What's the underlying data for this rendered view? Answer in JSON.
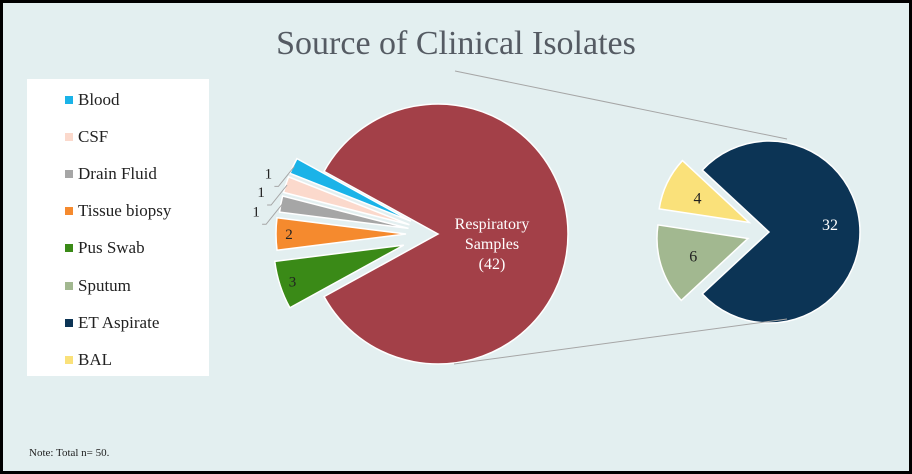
{
  "chart_data": {
    "type": "pie",
    "subtype": "pie-of-pie",
    "title": "Source of Clinical Isolates",
    "note": "Note: Total n= 50.",
    "legend_position": "left",
    "main_pie": {
      "slices": [
        {
          "name": "Respiratory Samples",
          "label": "Respiratory",
          "label2": "Samples",
          "label3": "(42)",
          "value": 42,
          "color": "#a34048"
        },
        {
          "name": "Pus Swab",
          "label": "3",
          "value": 3,
          "color": "#3a8a17"
        },
        {
          "name": "Tissue biopsy",
          "label": "2",
          "value": 2,
          "color": "#f58a2e"
        },
        {
          "name": "Drain Fluid",
          "label": "1",
          "value": 1,
          "color": "#a6a6a6"
        },
        {
          "name": "CSF",
          "label": "1",
          "value": 1,
          "color": "#fbd9cc"
        },
        {
          "name": "Blood",
          "label": "1",
          "value": 1,
          "color": "#1ab3e8"
        }
      ]
    },
    "secondary_pie": {
      "of": "Respiratory Samples",
      "slices": [
        {
          "name": "ET Aspirate",
          "label": "32",
          "value": 32,
          "color": "#0c3455"
        },
        {
          "name": "Sputum",
          "label": "6",
          "value": 6,
          "color": "#a2b890"
        },
        {
          "name": "BAL",
          "label": "4",
          "value": 4,
          "color": "#fae17a"
        }
      ]
    },
    "legend": [
      {
        "name": "Blood",
        "color": "#1ab3e8"
      },
      {
        "name": "CSF",
        "color": "#fbd9cc"
      },
      {
        "name": "Drain Fluid",
        "color": "#a6a6a6"
      },
      {
        "name": "Tissue biopsy",
        "color": "#f58a2e"
      },
      {
        "name": "Pus Swab",
        "color": "#3a8a17"
      },
      {
        "name": "Sputum",
        "color": "#a2b890"
      },
      {
        "name": "ET Aspirate",
        "color": "#0c3455"
      },
      {
        "name": "BAL",
        "color": "#fae17a"
      }
    ]
  }
}
